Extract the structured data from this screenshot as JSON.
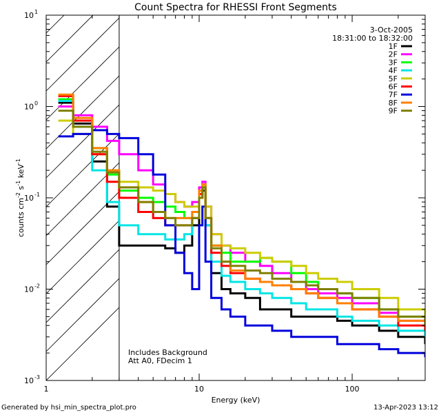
{
  "chart_data": {
    "type": "line",
    "title": "Count Spectra for RHESSI Front Segments",
    "xlabel": "Energy (keV)",
    "ylabel_parts": [
      "counts cm",
      "-2",
      " s",
      "-1",
      " keV",
      "-1"
    ],
    "xscale": "log",
    "yscale": "log",
    "xlim": [
      1,
      300
    ],
    "ylim": [
      0.001,
      10
    ],
    "x_ticks": [
      {
        "value": 1,
        "label": "1"
      },
      {
        "value": 10,
        "label": "10"
      },
      {
        "value": 100,
        "label": "100"
      }
    ],
    "y_ticks": [
      {
        "value": 0.001,
        "base": "10",
        "exp": "-3"
      },
      {
        "value": 0.01,
        "base": "10",
        "exp": "-2"
      },
      {
        "value": 0.1,
        "base": "10",
        "exp": "-1"
      },
      {
        "value": 1,
        "base": "10",
        "exp": "0"
      },
      {
        "value": 10,
        "base": "10",
        "exp": "1"
      }
    ],
    "date": "3-Oct-2005",
    "time_range": "18:31:00 to 18:32:00",
    "hatched_region": {
      "x_from": 1,
      "x_to": 3
    },
    "annotations": [
      "Includes Background",
      "Att A0, FDecim 1"
    ],
    "series": [
      {
        "name": "1F",
        "color": "#000000",
        "x": [
          1.2,
          1.5,
          2,
          2.5,
          3,
          4,
          5,
          6,
          7,
          8,
          9,
          10,
          10.5,
          11,
          12,
          14,
          16,
          20,
          25,
          30,
          40,
          50,
          60,
          80,
          100,
          150,
          200,
          300
        ],
        "y": [
          1.1,
          0.65,
          0.25,
          0.08,
          0.03,
          0.03,
          0.03,
          0.028,
          0.025,
          0.03,
          0.05,
          0.1,
          0.12,
          0.05,
          0.015,
          0.01,
          0.009,
          0.008,
          0.006,
          0.006,
          0.005,
          0.005,
          0.005,
          0.0045,
          0.004,
          0.0035,
          0.003,
          0.0025
        ]
      },
      {
        "name": "2F",
        "color": "#ff00ff",
        "x": [
          1.2,
          1.5,
          2,
          2.5,
          3,
          4,
          5,
          6,
          7,
          8,
          9,
          10,
          10.5,
          11,
          12,
          14,
          16,
          20,
          25,
          30,
          40,
          50,
          60,
          80,
          100,
          150,
          200,
          300
        ],
        "y": [
          1.0,
          0.8,
          0.6,
          0.42,
          0.3,
          0.2,
          0.14,
          0.11,
          0.09,
          0.08,
          0.09,
          0.13,
          0.15,
          0.08,
          0.04,
          0.03,
          0.025,
          0.02,
          0.018,
          0.015,
          0.012,
          0.01,
          0.009,
          0.008,
          0.007,
          0.0055,
          0.0045,
          0.0035
        ]
      },
      {
        "name": "3F",
        "color": "#00ff00",
        "x": [
          1.2,
          1.5,
          2,
          2.5,
          3,
          4,
          5,
          6,
          7,
          8,
          9,
          10,
          10.5,
          11,
          12,
          14,
          16,
          20,
          25,
          30,
          40,
          50,
          60,
          80,
          100,
          150,
          200,
          300
        ],
        "y": [
          1.2,
          0.7,
          0.35,
          0.18,
          0.12,
          0.1,
          0.09,
          0.08,
          0.07,
          0.06,
          0.07,
          0.12,
          0.14,
          0.06,
          0.03,
          0.025,
          0.02,
          0.02,
          0.022,
          0.02,
          0.015,
          0.012,
          0.01,
          0.009,
          0.008,
          0.006,
          0.005,
          0.004
        ]
      },
      {
        "name": "4F",
        "color": "#00e5e5",
        "x": [
          1.2,
          1.5,
          2,
          2.5,
          3,
          4,
          5,
          6,
          7,
          8,
          9,
          10,
          10.5,
          11,
          12,
          14,
          16,
          20,
          25,
          30,
          40,
          50,
          60,
          80,
          100,
          150,
          200,
          300
        ],
        "y": [
          1.15,
          0.6,
          0.2,
          0.09,
          0.05,
          0.04,
          0.04,
          0.035,
          0.035,
          0.04,
          0.06,
          0.11,
          0.13,
          0.05,
          0.02,
          0.014,
          0.012,
          0.01,
          0.009,
          0.008,
          0.007,
          0.006,
          0.006,
          0.005,
          0.0045,
          0.004,
          0.0035,
          0.003
        ]
      },
      {
        "name": "5F",
        "color": "#cccc00",
        "x": [
          1.2,
          1.5,
          2,
          2.5,
          3,
          4,
          5,
          6,
          7,
          8,
          9,
          10,
          10.5,
          11,
          12,
          14,
          16,
          20,
          25,
          30,
          40,
          50,
          60,
          80,
          100,
          150,
          200,
          300
        ],
        "y": [
          0.7,
          0.5,
          0.3,
          0.2,
          0.15,
          0.13,
          0.12,
          0.11,
          0.09,
          0.08,
          0.08,
          0.12,
          0.14,
          0.08,
          0.04,
          0.03,
          0.028,
          0.025,
          0.022,
          0.02,
          0.018,
          0.015,
          0.013,
          0.012,
          0.01,
          0.008,
          0.006,
          0.0045
        ]
      },
      {
        "name": "6F",
        "color": "#ff0000",
        "x": [
          1.2,
          1.5,
          2,
          2.5,
          3,
          4,
          5,
          6,
          7,
          8,
          9,
          10,
          10.5,
          11,
          12,
          14,
          16,
          20,
          25,
          30,
          40,
          50,
          60,
          80,
          100,
          150,
          200,
          300
        ],
        "y": [
          1.3,
          0.7,
          0.3,
          0.15,
          0.1,
          0.07,
          0.06,
          0.05,
          0.05,
          0.05,
          0.06,
          0.11,
          0.13,
          0.06,
          0.025,
          0.018,
          0.015,
          0.013,
          0.012,
          0.011,
          0.01,
          0.009,
          0.008,
          0.007,
          0.006,
          0.005,
          0.004,
          0.0035
        ]
      },
      {
        "name": "7F",
        "color": "#0000dd",
        "x": [
          1.2,
          1.5,
          2,
          2.5,
          3,
          4,
          5,
          6,
          7,
          8,
          9,
          10,
          10.5,
          11,
          12,
          14,
          16,
          20,
          25,
          30,
          40,
          50,
          60,
          80,
          100,
          150,
          200,
          300
        ],
        "y": [
          0.47,
          0.5,
          0.55,
          0.5,
          0.45,
          0.3,
          0.18,
          0.05,
          0.025,
          0.015,
          0.01,
          0.05,
          0.08,
          0.02,
          0.008,
          0.006,
          0.005,
          0.004,
          0.004,
          0.0035,
          0.003,
          0.003,
          0.003,
          0.0025,
          0.0025,
          0.0022,
          0.002,
          0.0018
        ]
      },
      {
        "name": "8F",
        "color": "#ff7f00",
        "x": [
          1.2,
          1.5,
          2,
          2.5,
          3,
          4,
          5,
          6,
          7,
          8,
          9,
          10,
          10.5,
          11,
          12,
          14,
          16,
          20,
          25,
          30,
          40,
          50,
          60,
          80,
          100,
          150,
          200,
          300
        ],
        "y": [
          1.35,
          0.75,
          0.35,
          0.2,
          0.13,
          0.09,
          0.07,
          0.06,
          0.06,
          0.06,
          0.07,
          0.12,
          0.14,
          0.06,
          0.03,
          0.02,
          0.016,
          0.013,
          0.012,
          0.011,
          0.01,
          0.009,
          0.008,
          0.007,
          0.006,
          0.005,
          0.0045,
          0.004
        ]
      },
      {
        "name": "9F",
        "color": "#808000",
        "x": [
          1.2,
          1.5,
          2,
          2.5,
          3,
          4,
          5,
          6,
          7,
          8,
          9,
          10,
          10.5,
          11,
          12,
          14,
          16,
          20,
          25,
          30,
          40,
          50,
          60,
          80,
          100,
          150,
          200,
          300
        ],
        "y": [
          0.9,
          0.6,
          0.32,
          0.19,
          0.13,
          0.09,
          0.07,
          0.06,
          0.05,
          0.05,
          0.06,
          0.1,
          0.13,
          0.06,
          0.028,
          0.02,
          0.018,
          0.016,
          0.015,
          0.013,
          0.012,
          0.011,
          0.01,
          0.009,
          0.008,
          0.006,
          0.005,
          0.004
        ]
      }
    ]
  },
  "footer": {
    "generated_by": "Generated by hsi_min_spectra_plot.pro",
    "timestamp": "13-Apr-2023 13:12"
  }
}
